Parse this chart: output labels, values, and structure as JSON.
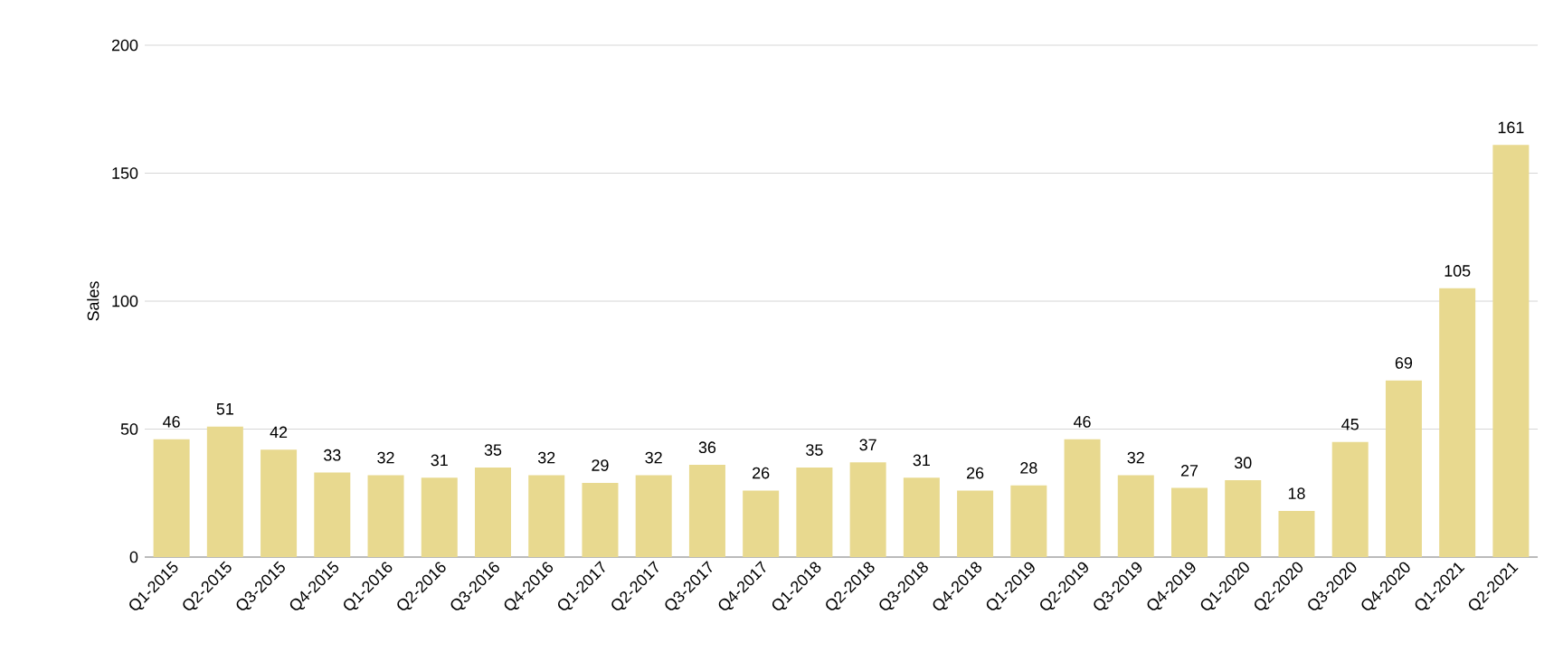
{
  "chart_data": {
    "type": "bar",
    "ylabel": "Sales",
    "categories": [
      "Q1-2015",
      "Q2-2015",
      "Q3-2015",
      "Q4-2015",
      "Q1-2016",
      "Q2-2016",
      "Q3-2016",
      "Q4-2016",
      "Q1-2017",
      "Q2-2017",
      "Q3-2017",
      "Q4-2017",
      "Q1-2018",
      "Q2-2018",
      "Q3-2018",
      "Q4-2018",
      "Q1-2019",
      "Q2-2019",
      "Q3-2019",
      "Q4-2019",
      "Q1-2020",
      "Q2-2020",
      "Q3-2020",
      "Q4-2020",
      "Q1-2021",
      "Q2-2021"
    ],
    "values": [
      46,
      51,
      42,
      33,
      32,
      31,
      35,
      32,
      29,
      32,
      36,
      26,
      35,
      37,
      31,
      26,
      28,
      46,
      32,
      27,
      30,
      18,
      45,
      69,
      105,
      161
    ],
    "color": "#e8d98f",
    "ylim": [
      0,
      200
    ],
    "yticks": [
      0,
      50,
      100,
      150,
      200
    ],
    "grid": "y",
    "data_labels": true
  }
}
